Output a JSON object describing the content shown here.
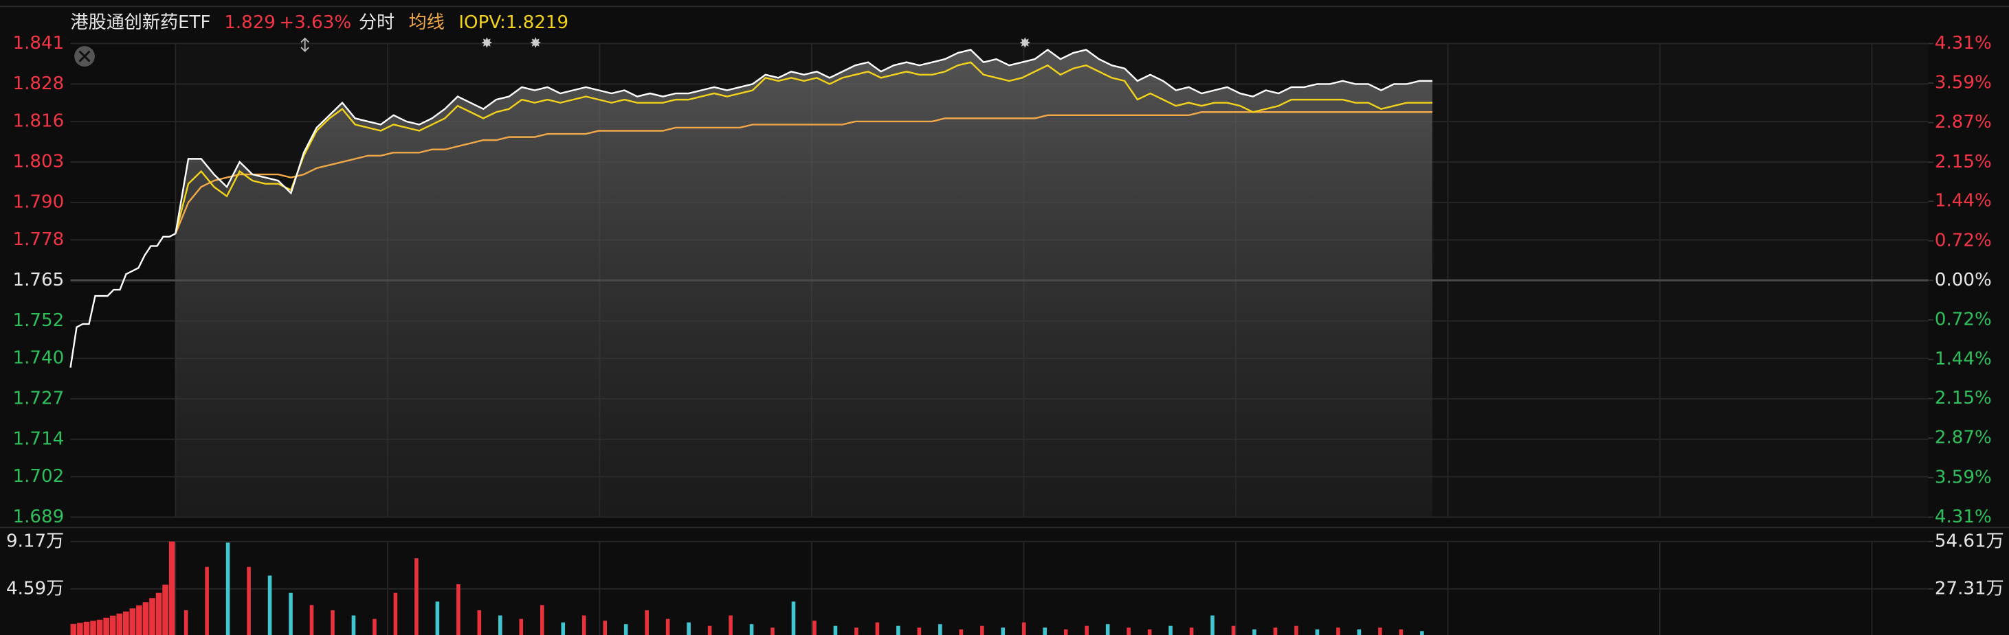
{
  "chart_data": {
    "type": "line",
    "header": {
      "name": "港股通创新药ETF",
      "price": 1.829,
      "change": "+3.63%",
      "mode": "分时",
      "avg": "均线",
      "iopv": "IOPV:1.8219"
    },
    "ylim": [
      1.689,
      1.841
    ],
    "yticks": [
      1.841,
      1.828,
      1.816,
      1.803,
      {
        "value": 1.79,
        "label": "1.790"
      },
      1.778,
      1.765,
      1.752,
      {
        "value": 1.74,
        "label": "1.740"
      },
      1.727,
      1.714,
      1.702,
      1.689
    ],
    "y2lim": [
      -4.31,
      4.31
    ],
    "y2ticks": [
      {
        "value": 4.31,
        "label": "4.31%"
      },
      {
        "value": 3.59,
        "label": "3.59%"
      },
      {
        "value": 2.87,
        "label": "2.87%"
      },
      {
        "value": 2.15,
        "label": "2.15%"
      },
      {
        "value": 1.44,
        "label": "1.44%"
      },
      {
        "value": 0.72,
        "label": "0.72%"
      },
      {
        "value": 0,
        "label": "0.00%"
      },
      {
        "value": -0.72,
        "label": "0.72%"
      },
      {
        "value": -1.44,
        "label": "1.44%"
      },
      {
        "value": -2.15,
        "label": "2.15%"
      },
      {
        "value": -2.87,
        "label": "2.87%"
      },
      {
        "value": -3.59,
        "label": "3.59%"
      },
      {
        "value": -4.31,
        "label": "4.31%"
      }
    ],
    "grid": true,
    "auction": {
      "color": "#ffffff",
      "values": [
        1.737,
        1.75,
        1.751,
        1.751,
        1.76,
        1.76,
        1.76,
        1.762,
        1.762,
        1.767,
        1.768,
        1.769,
        1.773,
        1.776,
        1.776,
        1.779,
        1.779,
        1.78
      ]
    },
    "series": [
      {
        "color": "#ffffff",
        "values": [
          1.78,
          1.804,
          1.804,
          1.799,
          1.795,
          1.803,
          1.799,
          1.798,
          1.797,
          1.793,
          1.806,
          1.814,
          1.818,
          1.822,
          1.817,
          1.816,
          1.815,
          1.818,
          1.816,
          1.815,
          1.817,
          1.82,
          1.824,
          1.822,
          1.82,
          1.823,
          1.824,
          1.827,
          1.826,
          1.827,
          1.825,
          1.826,
          1.827,
          1.826,
          1.825,
          1.826,
          1.824,
          1.825,
          1.824,
          1.825,
          1.825,
          1.826,
          1.827,
          1.826,
          1.827,
          1.828,
          1.831,
          1.83,
          1.832,
          1.831,
          1.832,
          1.83,
          1.832,
          1.834,
          1.835,
          1.832,
          1.834,
          1.835,
          1.834,
          1.835,
          1.836,
          1.838,
          1.839,
          1.835,
          1.836,
          1.834,
          1.835,
          1.836,
          1.839,
          1.836,
          1.838,
          1.839,
          1.836,
          1.834,
          1.833,
          1.829,
          1.831,
          1.829,
          1.826,
          1.827,
          1.825,
          1.826,
          1.827,
          1.825,
          1.824,
          1.826,
          1.825,
          1.827,
          1.827,
          1.828,
          1.828,
          1.829,
          1.828,
          1.828,
          1.826,
          1.828,
          1.828,
          1.829,
          1.829
        ]
      },
      {
        "color": "#f2d21b",
        "values": [
          1.78,
          1.796,
          1.8,
          1.795,
          1.792,
          1.8,
          1.797,
          1.796,
          1.796,
          1.794,
          1.805,
          1.813,
          1.817,
          1.82,
          1.815,
          1.814,
          1.813,
          1.815,
          1.814,
          1.813,
          1.815,
          1.817,
          1.821,
          1.819,
          1.817,
          1.819,
          1.82,
          1.823,
          1.822,
          1.823,
          1.822,
          1.823,
          1.824,
          1.823,
          1.822,
          1.823,
          1.822,
          1.822,
          1.822,
          1.823,
          1.823,
          1.824,
          1.825,
          1.824,
          1.825,
          1.826,
          1.83,
          1.829,
          1.83,
          1.829,
          1.83,
          1.828,
          1.83,
          1.831,
          1.832,
          1.83,
          1.831,
          1.832,
          1.831,
          1.831,
          1.832,
          1.834,
          1.835,
          1.831,
          1.83,
          1.829,
          1.83,
          1.832,
          1.834,
          1.831,
          1.833,
          1.834,
          1.832,
          1.83,
          1.829,
          1.823,
          1.825,
          1.823,
          1.821,
          1.822,
          1.821,
          1.822,
          1.822,
          1.821,
          1.819,
          1.82,
          1.821,
          1.823,
          1.823,
          1.823,
          1.823,
          1.823,
          1.822,
          1.822,
          1.82,
          1.821,
          1.822,
          1.822,
          1.822
        ]
      },
      {
        "color": "#f0a848",
        "values": [
          1.78,
          1.79,
          1.795,
          1.797,
          1.798,
          1.799,
          1.799,
          1.799,
          1.799,
          1.798,
          1.799,
          1.801,
          1.802,
          1.803,
          1.804,
          1.805,
          1.805,
          1.806,
          1.806,
          1.806,
          1.807,
          1.807,
          1.808,
          1.809,
          1.81,
          1.81,
          1.811,
          1.811,
          1.811,
          1.812,
          1.812,
          1.812,
          1.812,
          1.813,
          1.813,
          1.813,
          1.813,
          1.813,
          1.813,
          1.814,
          1.814,
          1.814,
          1.814,
          1.814,
          1.814,
          1.815,
          1.815,
          1.815,
          1.815,
          1.815,
          1.815,
          1.815,
          1.815,
          1.816,
          1.816,
          1.816,
          1.816,
          1.816,
          1.816,
          1.816,
          1.817,
          1.817,
          1.817,
          1.817,
          1.817,
          1.817,
          1.817,
          1.817,
          1.818,
          1.818,
          1.818,
          1.818,
          1.818,
          1.818,
          1.818,
          1.818,
          1.818,
          1.818,
          1.818,
          1.818,
          1.819,
          1.819,
          1.819,
          1.819,
          1.819,
          1.819,
          1.819,
          1.819,
          1.819,
          1.819,
          1.819,
          1.819,
          1.819,
          1.819,
          1.819,
          1.819,
          1.819,
          1.819,
          1.819
        ]
      }
    ],
    "volume": {
      "type": "bar",
      "ylim": [
        0,
        9.17
      ],
      "yticks": [
        {
          "value": 9.17,
          "label": "9.17万"
        },
        {
          "value": 4.59,
          "label": "4.59万"
        }
      ],
      "y2lim": [
        0,
        54.61
      ],
      "y2ticks": [
        {
          "value": 54.61,
          "label": "54.61万"
        },
        {
          "value": 27.31,
          "label": "27.31万"
        }
      ],
      "auction": {
        "color": "#e8323c",
        "values": [
          1.2,
          1.3,
          1.4,
          1.5,
          1.6,
          1.8,
          2.0,
          2.2,
          2.4,
          2.7,
          3.0,
          3.3,
          3.7,
          4.2,
          5.0,
          9.17
        ]
      },
      "values": [
        15,
        40,
        54,
        40,
        35,
        25,
        18,
        15,
        12,
        10,
        25,
        45,
        20,
        30,
        15,
        12,
        10,
        18,
        8,
        12,
        9,
        7,
        15,
        10,
        8,
        6,
        12,
        7,
        5,
        20,
        9,
        6,
        5,
        8,
        6,
        5,
        7,
        4,
        6,
        5,
        8,
        5,
        4,
        6,
        7,
        5,
        4,
        6,
        5,
        12,
        6,
        4,
        5,
        6,
        4,
        5,
        4,
        5,
        4,
        3
      ],
      "colors": [
        "#e8323c",
        "#e8323c",
        "#3fc6d0",
        "#e8323c",
        "#3fc6d0",
        "#3fc6d0",
        "#e8323c",
        "#e8323c",
        "#3fc6d0",
        "#e8323c",
        "#e8323c",
        "#e8323c",
        "#3fc6d0",
        "#e8323c",
        "#e8323c",
        "#3fc6d0",
        "#e8323c",
        "#e8323c",
        "#3fc6d0",
        "#e8323c",
        "#e8323c",
        "#3fc6d0",
        "#e8323c",
        "#e8323c",
        "#3fc6d0",
        "#e8323c",
        "#e8323c",
        "#3fc6d0",
        "#e8323c",
        "#3fc6d0",
        "#e8323c",
        "#3fc6d0",
        "#e8323c",
        "#e8323c",
        "#3fc6d0",
        "#e8323c",
        "#3fc6d0",
        "#e8323c",
        "#e8323c",
        "#3fc6d0",
        "#e8323c",
        "#3fc6d0",
        "#e8323c",
        "#e8323c",
        "#3fc6d0",
        "#e8323c",
        "#e8323c",
        "#3fc6d0",
        "#e8323c",
        "#3fc6d0",
        "#e8323c",
        "#3fc6d0",
        "#e8323c",
        "#e8323c",
        "#3fc6d0",
        "#e8323c",
        "#3fc6d0",
        "#e8323c",
        "#e8323c",
        "#3fc6d0"
      ]
    }
  }
}
